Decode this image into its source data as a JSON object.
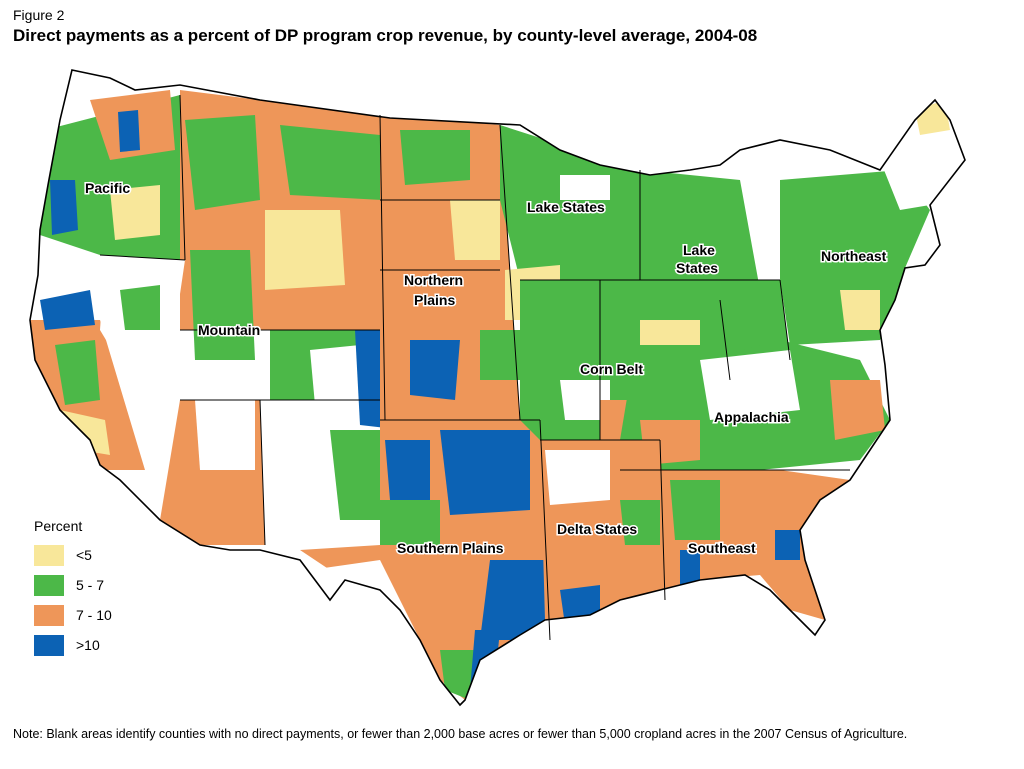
{
  "figure_label": "Figure 2",
  "title": "Direct payments as a percent of DP program crop revenue, by county-level average, 2004-08",
  "legend": {
    "title": "Percent",
    "items": [
      {
        "label": "<5",
        "color": "#f8e79a"
      },
      {
        "label": "5 - 7",
        "color": "#4cb848"
      },
      {
        "label": "7 - 10",
        "color": "#ee9659"
      },
      {
        "label": ">10",
        "color": "#0c62b4"
      }
    ]
  },
  "regions": [
    {
      "label": "Pacific"
    },
    {
      "label": "Mountain"
    },
    {
      "label": "Northern Plains"
    },
    {
      "label": "Southern Plains"
    },
    {
      "label": "Lake States"
    },
    {
      "label": "Lake States"
    },
    {
      "label": "Corn Belt"
    },
    {
      "label": "Delta States"
    },
    {
      "label": "Appalachia"
    },
    {
      "label": "Southeast"
    },
    {
      "label": "Northeast"
    }
  ],
  "note": "Note: Blank areas identify counties with no direct payments, or fewer than 2,000 base acres or fewer than 5,000 cropland acres in the 2007 Census of Agriculture.",
  "colors": {
    "blank": "#ffffff",
    "border": "#000000"
  }
}
